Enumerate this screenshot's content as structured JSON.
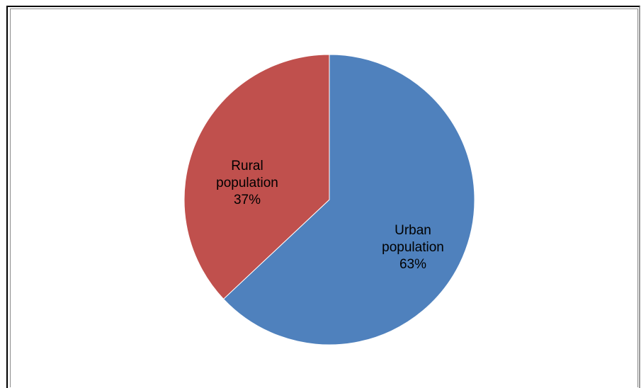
{
  "chart_data": {
    "type": "pie",
    "slices": [
      {
        "label_line1": "Urban",
        "label_line2": "population",
        "pct_text": "63%",
        "value": 63,
        "color": "#4f81bd"
      },
      {
        "label_line1": "Rural",
        "label_line2": "population",
        "pct_text": "37%",
        "value": 37,
        "color": "#c0504d"
      }
    ],
    "start": "12 o'clock",
    "direction": "clockwise",
    "legend": "none",
    "data_labels": "inside"
  }
}
